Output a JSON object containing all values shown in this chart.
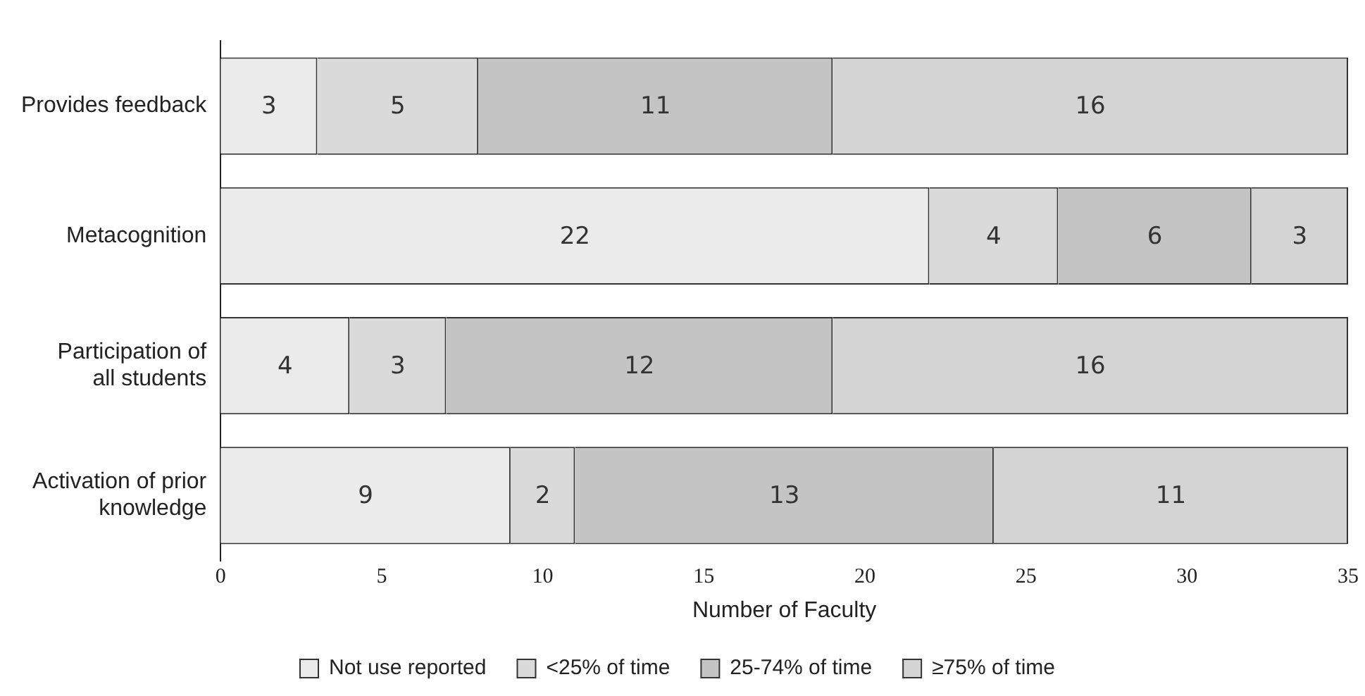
{
  "chart_data": {
    "type": "bar",
    "orientation": "horizontal",
    "stacked": true,
    "xlabel": "Number of Faculty",
    "categories": [
      "Provides feedback",
      "Metacognition",
      "Participation of all students",
      "Activation of prior knowledge"
    ],
    "series": [
      {
        "name": "Not use reported",
        "color": "#ebebeb",
        "values": [
          3,
          22,
          4,
          9
        ]
      },
      {
        "name": "<25% of time",
        "color": "#dadada",
        "values": [
          5,
          4,
          3,
          2
        ]
      },
      {
        "name": "25-74% of time",
        "color": "#c4c4c4",
        "values": [
          11,
          6,
          12,
          13
        ]
      },
      {
        "name": "≥75% of time",
        "color": "#d4d4d4",
        "values": [
          16,
          3,
          16,
          11
        ]
      }
    ],
    "xlim": [
      0,
      35
    ],
    "xticks": [
      0,
      5,
      10,
      15,
      20,
      25,
      30,
      35
    ],
    "grid": false,
    "legend": "bottom",
    "data_labels": true
  }
}
